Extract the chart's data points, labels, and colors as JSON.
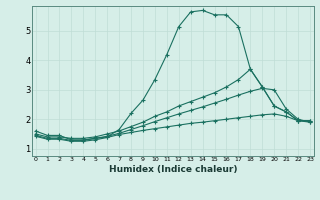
{
  "xlabel": "Humidex (Indice chaleur)",
  "background_color": "#d6eee8",
  "grid_color": "#c0ddd6",
  "line_color": "#1a7060",
  "x_ticks": [
    0,
    1,
    2,
    3,
    4,
    5,
    6,
    7,
    8,
    9,
    10,
    11,
    12,
    13,
    14,
    15,
    16,
    17,
    18,
    19,
    20,
    21,
    22,
    23
  ],
  "y_ticks": [
    1,
    2,
    3,
    4,
    5
  ],
  "xlim": [
    -0.3,
    23.3
  ],
  "ylim": [
    0.75,
    5.85
  ],
  "series": [
    {
      "x": [
        0,
        1,
        2,
        3,
        4,
        5,
        6,
        7,
        8,
        9,
        10,
        11,
        12,
        13,
        14,
        15,
        16,
        17,
        18,
        19,
        20,
        21,
        22,
        23
      ],
      "y": [
        1.6,
        1.45,
        1.45,
        1.3,
        1.3,
        1.35,
        1.4,
        1.65,
        2.2,
        2.65,
        3.35,
        4.2,
        5.15,
        5.65,
        5.7,
        5.55,
        5.55,
        5.15,
        3.7,
        3.1,
        2.45,
        2.25,
        1.95,
        1.95
      ]
    },
    {
      "x": [
        0,
        1,
        2,
        3,
        4,
        5,
        6,
        7,
        8,
        9,
        10,
        11,
        12,
        13,
        14,
        15,
        16,
        17,
        18,
        19,
        20,
        21,
        22,
        23
      ],
      "y": [
        1.5,
        1.4,
        1.4,
        1.35,
        1.35,
        1.4,
        1.5,
        1.6,
        1.75,
        1.9,
        2.1,
        2.25,
        2.45,
        2.6,
        2.75,
        2.9,
        3.1,
        3.35,
        3.7,
        3.1,
        2.45,
        2.25,
        1.95,
        1.95
      ]
    },
    {
      "x": [
        0,
        1,
        2,
        3,
        4,
        5,
        6,
        7,
        8,
        9,
        10,
        11,
        12,
        13,
        14,
        15,
        16,
        17,
        18,
        19,
        20,
        21,
        22,
        23
      ],
      "y": [
        1.45,
        1.35,
        1.35,
        1.28,
        1.28,
        1.35,
        1.42,
        1.52,
        1.65,
        1.78,
        1.92,
        2.05,
        2.18,
        2.3,
        2.42,
        2.55,
        2.68,
        2.82,
        2.95,
        3.05,
        3.0,
        2.35,
        2.0,
        1.9
      ]
    },
    {
      "x": [
        0,
        1,
        2,
        3,
        4,
        5,
        6,
        7,
        8,
        9,
        10,
        11,
        12,
        13,
        14,
        15,
        16,
        17,
        18,
        19,
        20,
        21,
        22,
        23
      ],
      "y": [
        1.42,
        1.32,
        1.32,
        1.25,
        1.25,
        1.3,
        1.38,
        1.48,
        1.55,
        1.62,
        1.68,
        1.74,
        1.8,
        1.86,
        1.9,
        1.95,
        2.0,
        2.05,
        2.1,
        2.15,
        2.18,
        2.1,
        1.95,
        1.9
      ]
    }
  ]
}
